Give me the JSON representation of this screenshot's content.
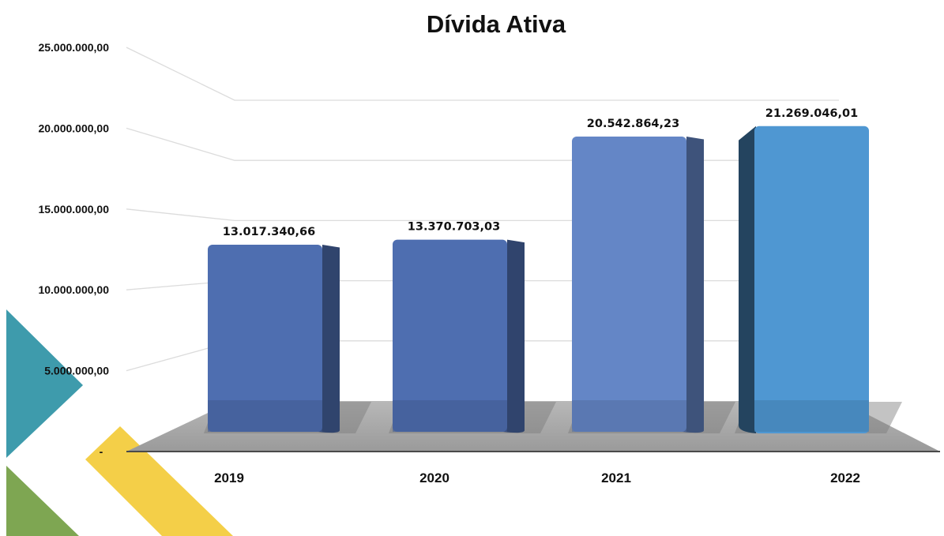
{
  "chart_data": {
    "type": "bar",
    "title": "Dívida Ativa",
    "categories": [
      "2019",
      "2020",
      "2021",
      "2022"
    ],
    "values": [
      13017340.66,
      13370703.03,
      20542864.23,
      21269046.01
    ],
    "value_labels": [
      "13.017.340,66",
      "13.370.703,03",
      "20.542.864,23",
      "21.269.046,01"
    ],
    "ytick_labels": [
      "-",
      "5.000.000,00",
      "10.000.000,00",
      "15.000.000,00",
      "20.000.000,00",
      "25.000.000,00"
    ],
    "ylim": [
      0,
      25000000
    ],
    "grid": true,
    "legend": "none",
    "colors": {
      "bar_2019": "#4e6eb0",
      "bar_2020": "#4e6eb0",
      "bar_2021": "#6486c6",
      "bar_2022": "#4f97d2",
      "floor": "#a8a8a8",
      "deco_teal": "#3e9bac",
      "deco_green": "#7ea652",
      "deco_yellow": "#f4cf48"
    }
  }
}
